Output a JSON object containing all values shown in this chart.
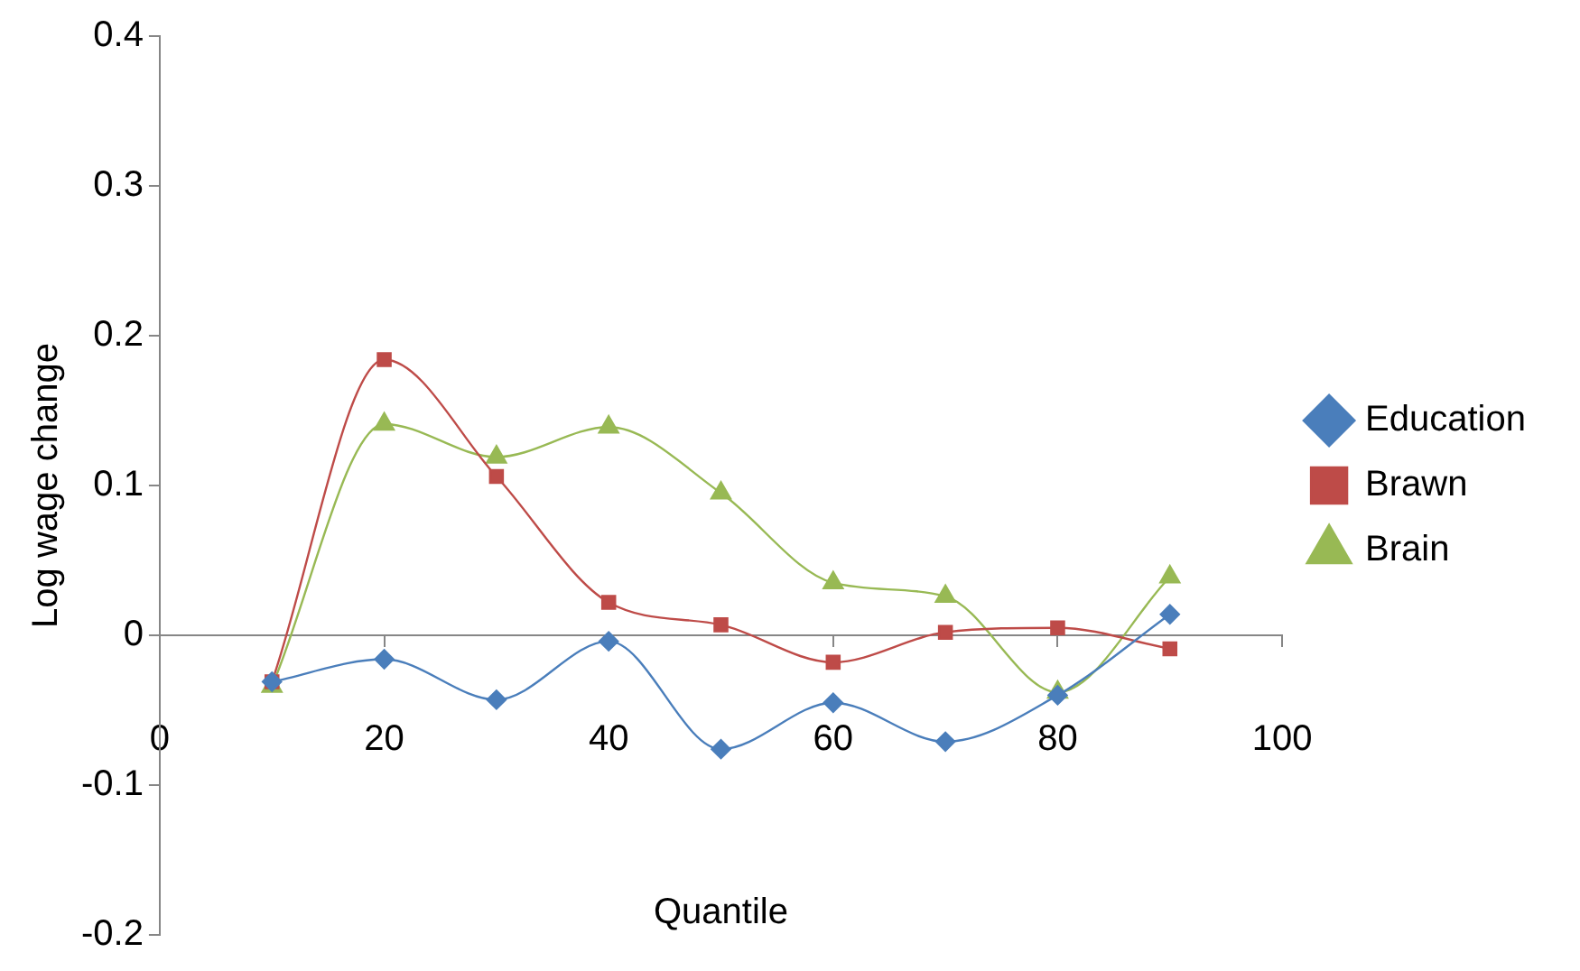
{
  "chart_data": {
    "type": "line",
    "xlabel": "Quantile",
    "ylabel": "Log wage change",
    "x": [
      10,
      20,
      30,
      40,
      50,
      60,
      70,
      80,
      90
    ],
    "series": [
      {
        "name": "Education",
        "color": "#4a7ebb",
        "marker": "diamond",
        "values": [
          -0.031,
          -0.016,
          -0.043,
          -0.004,
          -0.076,
          -0.045,
          -0.071,
          -0.04,
          0.014
        ]
      },
      {
        "name": "Brawn",
        "color": "#be4b48",
        "marker": "square",
        "values": [
          -0.031,
          0.184,
          0.106,
          0.022,
          0.007,
          -0.018,
          0.002,
          0.005,
          -0.009
        ]
      },
      {
        "name": "Brain",
        "color": "#98b954",
        "marker": "triangle",
        "values": [
          -0.034,
          0.141,
          0.119,
          0.139,
          0.095,
          0.035,
          0.026,
          -0.038,
          0.039
        ]
      }
    ],
    "xlim": [
      0,
      100
    ],
    "xticks": [
      0,
      20,
      40,
      60,
      80,
      100
    ],
    "ylim": [
      -0.2,
      0.4
    ],
    "yticks": [
      -0.2,
      -0.1,
      0,
      0.1,
      0.2,
      0.3,
      0.4
    ],
    "grid": false,
    "legend": "right"
  }
}
